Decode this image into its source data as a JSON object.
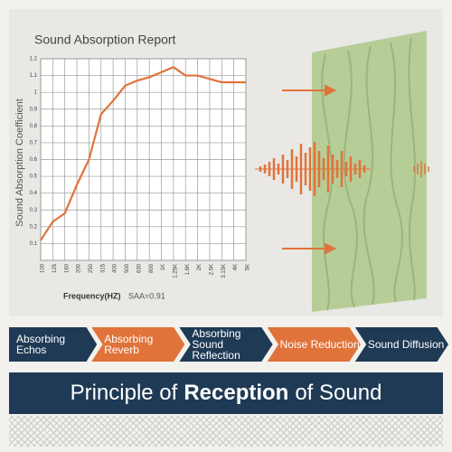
{
  "chart_data": {
    "type": "line",
    "title": "Sound Absorption Report",
    "y_label": "Sound Absorption Coefficient",
    "x_label": "Frequency(HZ)",
    "annotation": "SAA=0.91",
    "categories": [
      "100",
      "125",
      "160",
      "200",
      "250",
      "315",
      "400",
      "500",
      "630",
      "800",
      "1K",
      "1.25K",
      "1.6K",
      "2K",
      "2.5K",
      "3.15K",
      "4K",
      "5K"
    ],
    "series": [
      {
        "name": "Sound Absorption Coefficient",
        "color": "#e0733a",
        "values": [
          0.12,
          0.23,
          0.28,
          0.45,
          0.6,
          0.87,
          0.95,
          1.04,
          1.07,
          1.09,
          1.12,
          1.15,
          1.1,
          1.1,
          1.08,
          1.06,
          1.06,
          1.06
        ]
      }
    ],
    "ylim": [
      0,
      1.2
    ],
    "yticks": [
      0.1,
      0.2,
      0.3,
      0.4,
      0.5,
      0.6,
      0.7,
      0.8,
      0.9,
      1,
      1.1,
      1.2
    ],
    "grid": true
  },
  "steps": [
    "Absorbing Echos",
    "Absorbing Reverb",
    "Absorbing Sound Reflection",
    "Noise Reduction",
    "Sound Diffusion"
  ],
  "banner": {
    "before": "Principle of",
    "bold": "Reception",
    "after": "of Sound"
  }
}
